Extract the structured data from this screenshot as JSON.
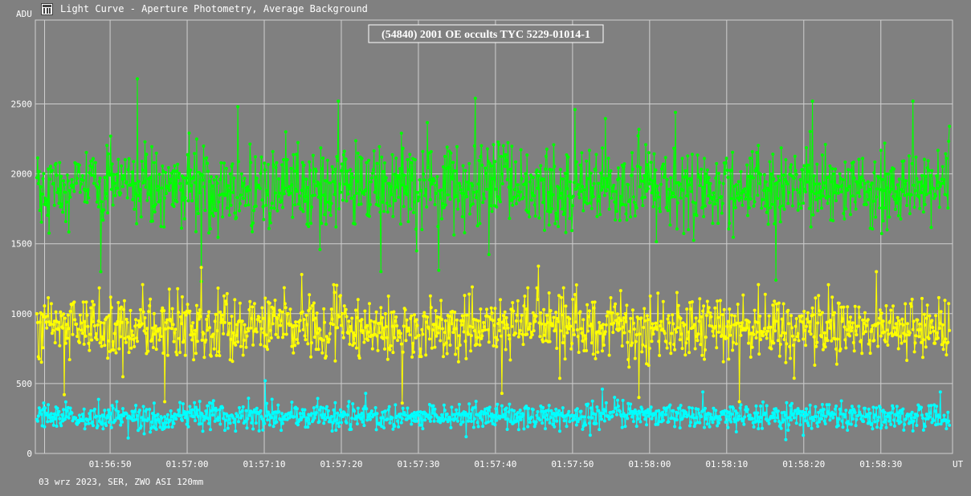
{
  "window": {
    "title": "Light Curve - Aperture Photometry, Average Background",
    "app_icon": "light-curve-app-icon"
  },
  "footer": {
    "text": "03 wrz 2023, SER, ZWO ASI 120mm"
  },
  "chart_data": {
    "type": "line",
    "title": "(54840) 2001 OE occults TYC 5229-01014-1",
    "ylabel": "ADU",
    "xlabel": "UT",
    "ylim": [
      0,
      3100
    ],
    "xlim_seconds": [
      40.3,
      159.3
    ],
    "x_ticks": [
      "01:56:50",
      "01:57:00",
      "01:57:10",
      "01:57:20",
      "01:57:30",
      "01:57:40",
      "01:57:50",
      "01:58:00",
      "01:58:10",
      "01:58:20",
      "01:58:30"
    ],
    "y_ticks": [
      0,
      500,
      1000,
      1500,
      2000,
      2500
    ],
    "grid": true,
    "background": "#808080",
    "series": [
      {
        "color": "#00ff00",
        "mean": 1900,
        "sd": 150,
        "peak_values": [
          2680,
          2540,
          2520,
          2480,
          2460,
          2520,
          2520,
          2440
        ],
        "low_values": [
          1300,
          1310,
          1240,
          1230
        ]
      },
      {
        "color": "#ffff00",
        "mean": 900,
        "sd": 115,
        "peak_values": [
          1330,
          1340,
          1300,
          1280
        ],
        "low_values": [
          400,
          420,
          360,
          370,
          370,
          430
        ]
      },
      {
        "color": "#00ffff",
        "mean": 265,
        "sd": 45,
        "peak_values": [
          520,
          460,
          440,
          430,
          440
        ],
        "low_values": [
          110,
          120,
          130
        ]
      }
    ]
  }
}
